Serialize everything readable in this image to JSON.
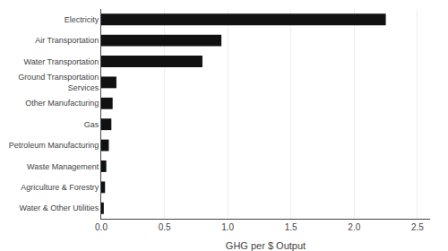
{
  "chart_data": {
    "type": "bar",
    "orientation": "horizontal",
    "categories": [
      "Water & Other Utilities",
      "Agriculture & Forestry",
      "Waste Management",
      "Petroleum Manufacturing",
      "Gas",
      "Other Manufacturing",
      "Ground Transportation\nServices",
      "Water Transportation",
      "Air Transportation",
      "Electricity"
    ],
    "values": [
      0.02,
      0.03,
      0.04,
      0.06,
      0.08,
      0.09,
      0.12,
      0.8,
      0.95,
      2.25
    ],
    "color": "#111111",
    "xlabel": "GHG per $ Output",
    "xlim": [
      0,
      2.6
    ],
    "xticks": [
      {
        "value": 0,
        "label": "0.0"
      },
      0.5,
      {
        "value": 1,
        "label": "1.0"
      },
      1.5,
      {
        "value": 2,
        "label": "2.0"
      },
      2.5
    ],
    "grid": true
  }
}
